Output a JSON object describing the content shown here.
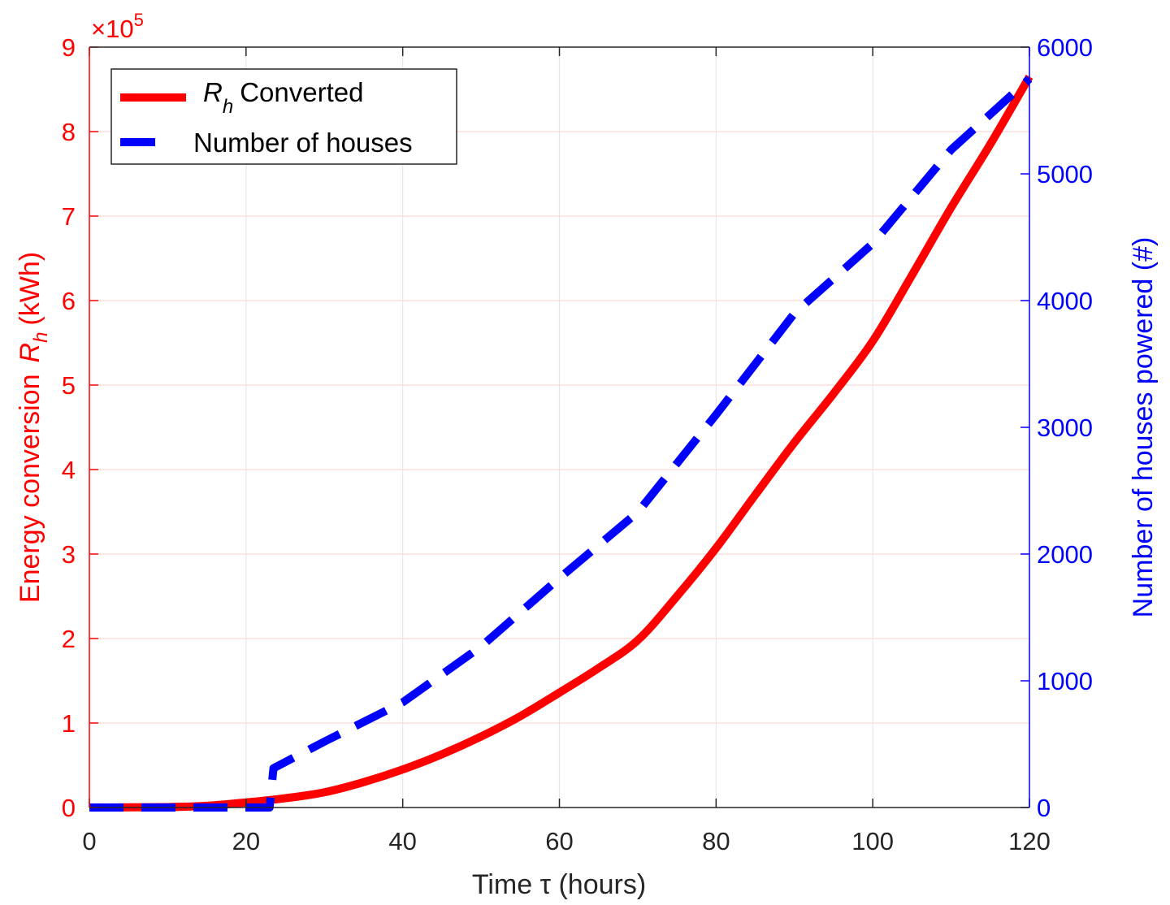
{
  "chart_data": {
    "type": "line",
    "x_axis": {
      "label": "Time τ (hours)",
      "range": [
        0,
        120
      ],
      "ticks": [
        0,
        20,
        40,
        60,
        80,
        100,
        120
      ],
      "grid": true
    },
    "y_axis_left": {
      "label_prefix": "Energy conversion",
      "label_symbol": "R",
      "label_subscript": "h",
      "label_unit": "(kWh)",
      "multiplier_base": "×10",
      "multiplier_exp": "5",
      "range": [
        0,
        9
      ],
      "ticks": [
        0,
        1,
        2,
        3,
        4,
        5,
        6,
        7,
        8,
        9
      ],
      "color": "#ff0000",
      "grid": true
    },
    "y_axis_right": {
      "label": "Number of houses powered (#)",
      "range": [
        0,
        6000
      ],
      "ticks": [
        0,
        1000,
        2000,
        3000,
        4000,
        5000,
        6000
      ],
      "color": "#0000ff"
    },
    "legend": {
      "placement": "top-left",
      "entries": [
        {
          "symbol": "R",
          "subscript": "h",
          "text": "Converted"
        },
        {
          "text": "Number of houses"
        }
      ]
    },
    "series": [
      {
        "name": "R_h Converted",
        "axis": "left",
        "color": "#ff0000",
        "style": "solid",
        "x": [
          0,
          10,
          15,
          20,
          25,
          30,
          35,
          40,
          45,
          50,
          55,
          60,
          65,
          70,
          75,
          80,
          85,
          90,
          95,
          100,
          105,
          110,
          115,
          120
        ],
        "y": [
          0,
          0.005,
          0.02,
          0.06,
          0.11,
          0.18,
          0.3,
          0.45,
          0.63,
          0.84,
          1.08,
          1.36,
          1.65,
          1.98,
          2.5,
          3.07,
          3.7,
          4.32,
          4.9,
          5.52,
          6.3,
          7.1,
          7.85,
          8.65
        ]
      },
      {
        "name": "Number of houses",
        "axis": "right",
        "color": "#0000ff",
        "style": "dashed",
        "x": [
          0,
          23,
          23.5,
          30,
          40,
          50,
          60,
          70,
          80,
          90,
          100,
          110,
          120
        ],
        "y": [
          0,
          0,
          310,
          520,
          830,
          1270,
          1810,
          2330,
          3100,
          3900,
          4450,
          5190,
          5750
        ]
      }
    ]
  }
}
